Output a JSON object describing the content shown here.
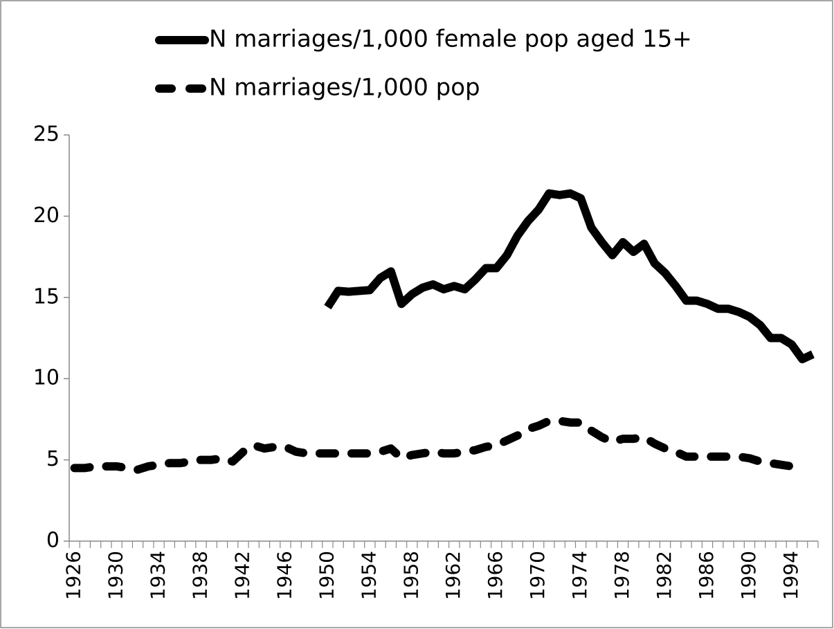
{
  "chart_data": {
    "type": "line",
    "categories": [
      "1926",
      null,
      null,
      null,
      "1930",
      null,
      null,
      null,
      "1934",
      null,
      null,
      null,
      "1938",
      null,
      null,
      null,
      "1942",
      null,
      null,
      null,
      "1946",
      null,
      null,
      null,
      "1950",
      null,
      null,
      null,
      "1954",
      null,
      null,
      null,
      "1958",
      null,
      null,
      null,
      "1962",
      null,
      null,
      null,
      "1966",
      null,
      null,
      null,
      "1970",
      null,
      null,
      null,
      "1974",
      null,
      null,
      null,
      "1978",
      null,
      null,
      null,
      "1982",
      null,
      null,
      null,
      "1986",
      null,
      null,
      null,
      "1990",
      null,
      null,
      null,
      "1994",
      null,
      null
    ],
    "series": [
      {
        "name": "N marriages/1,000 female pop aged 15+",
        "color": "#000000",
        "style": "solid",
        "values": [
          null,
          null,
          null,
          null,
          null,
          null,
          null,
          null,
          null,
          null,
          null,
          null,
          null,
          null,
          null,
          null,
          null,
          null,
          null,
          null,
          null,
          null,
          null,
          null,
          14.4,
          15.4,
          15.35,
          15.4,
          15.45,
          16.2,
          16.6,
          14.6,
          15.2,
          15.6,
          15.8,
          15.5,
          15.7,
          15.5,
          16.1,
          16.8,
          16.8,
          17.6,
          18.8,
          19.7,
          20.4,
          21.4,
          21.3,
          21.4,
          21.1,
          19.3,
          18.4,
          17.6,
          18.4,
          17.8,
          18.3,
          17.1,
          16.5,
          15.7,
          14.8,
          14.8,
          14.6,
          14.3,
          14.3,
          14.1,
          13.8,
          13.3,
          12.5,
          12.5,
          12.1,
          11.2,
          11.5
        ]
      },
      {
        "name": "N marriages/1,000 pop",
        "color": "#000000",
        "style": "dashed",
        "values": [
          4.5,
          4.5,
          4.6,
          4.6,
          4.6,
          4.5,
          4.4,
          4.6,
          4.7,
          4.8,
          4.8,
          4.9,
          5.0,
          5.0,
          5.1,
          4.9,
          5.5,
          5.9,
          5.7,
          5.8,
          5.8,
          5.5,
          5.4,
          5.4,
          5.4,
          5.4,
          5.4,
          5.4,
          5.4,
          5.5,
          5.7,
          5.1,
          5.3,
          5.4,
          5.5,
          5.4,
          5.4,
          5.5,
          5.6,
          5.8,
          5.9,
          6.2,
          6.5,
          6.9,
          7.1,
          7.4,
          7.4,
          7.3,
          7.3,
          6.8,
          6.4,
          6.1,
          6.3,
          6.3,
          6.4,
          6.0,
          5.7,
          5.5,
          5.2,
          5.2,
          5.2,
          5.2,
          5.2,
          5.2,
          5.1,
          4.9,
          4.8,
          4.7,
          4.6,
          4.3,
          null
        ]
      }
    ],
    "ylim": [
      0,
      25
    ],
    "yticks": [
      0,
      5,
      10,
      15,
      20,
      25
    ],
    "grid": false,
    "legend": "top"
  }
}
